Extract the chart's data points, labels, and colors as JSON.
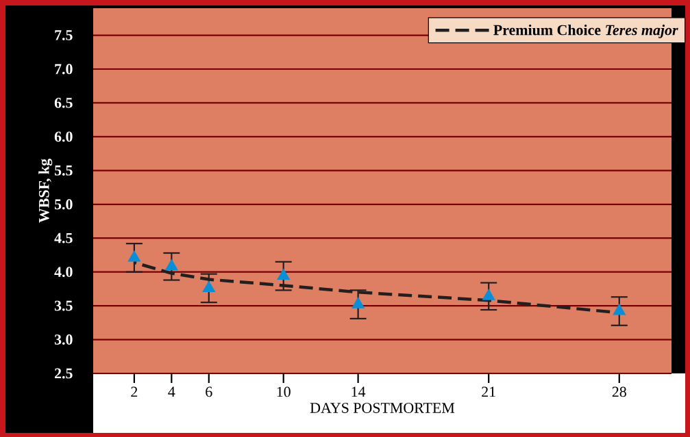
{
  "chart_data": {
    "type": "scatter",
    "xlabel": "DAYS POSTMORTEM",
    "ylabel": "WBSF, kg",
    "xlim": [
      -0.2,
      30.8
    ],
    "ylim": [
      2.5,
      7.9
    ],
    "xticks": [
      2,
      4,
      6,
      10,
      14,
      21,
      28
    ],
    "yticks": [
      2.5,
      {
        "value": 3,
        "label": "3.0"
      },
      3.5,
      {
        "value": 4,
        "label": "4.0"
      },
      4.5,
      {
        "value": 5,
        "label": "5.0"
      },
      5.5,
      {
        "value": 6,
        "label": "6.0"
      },
      6.5,
      {
        "value": 7,
        "label": "7.0"
      },
      7.5
    ],
    "grid": "y",
    "legend": "top right",
    "marker": "triangle",
    "series": [
      {
        "type": "scatter",
        "color": "#0a8fd6",
        "x": [
          2,
          4,
          6,
          10,
          14,
          21,
          28
        ],
        "values": [
          4.21,
          4.08,
          3.76,
          3.94,
          3.52,
          3.64,
          3.42
        ],
        "errors": [
          0.21,
          0.2,
          0.21,
          0.21,
          0.21,
          0.2,
          0.21
        ]
      },
      {
        "type": "line",
        "name": "Premium Choice *Teres major*",
        "color": "#231f20",
        "line_style": "dashed",
        "marker": "none",
        "x": [
          2,
          4,
          6,
          10,
          14,
          21,
          27.5
        ],
        "values": [
          4.14,
          3.98,
          3.89,
          3.8,
          3.7,
          3.58,
          3.41
        ]
      }
    ]
  }
}
